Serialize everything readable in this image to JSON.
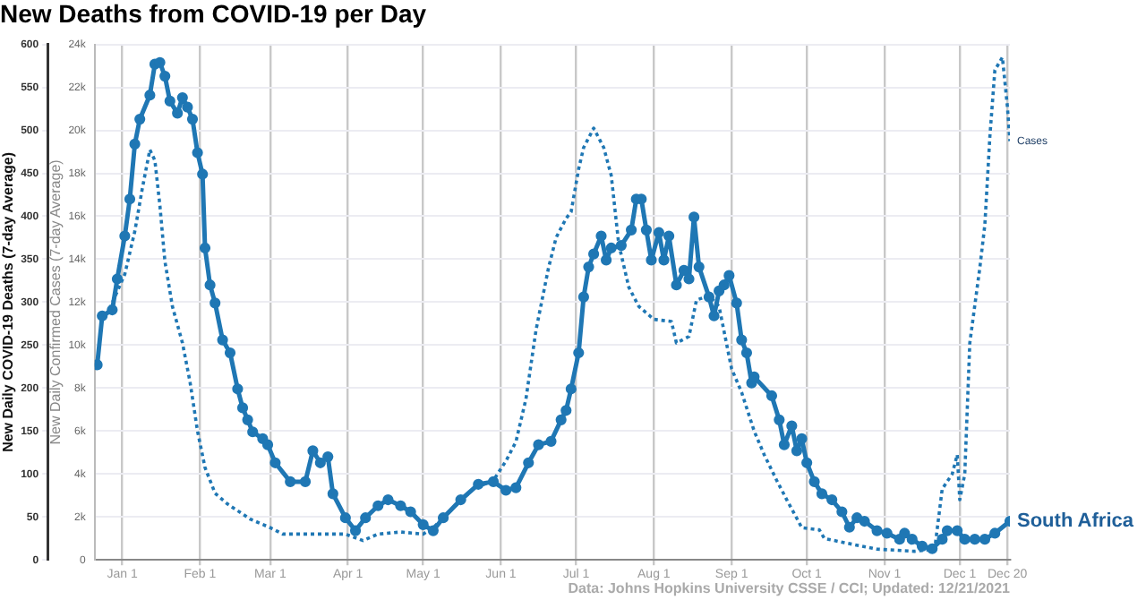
{
  "chart_data": {
    "type": "line",
    "title": "New Deaths from COVID-19 per Day",
    "ylabel": "New Daily COVID-19 Deaths (7-day Average)",
    "y2label": "New Daily Confirmed Cases (7-day Average)",
    "annotations": [
      "Data: Johns Hopkins University CSSE / CCI; Updated: 12/21/2021"
    ],
    "xlim": [
      "2020-12-21",
      "2021-12-21"
    ],
    "xticks": [
      {
        "value": "2021-01-01",
        "label": "Jan 1"
      },
      {
        "value": "2021-02-01",
        "label": "Feb 1"
      },
      {
        "value": "2021-03-01",
        "label": "Mar 1"
      },
      {
        "value": "2021-04-01",
        "label": "Apr 1"
      },
      {
        "value": "2021-05-01",
        "label": "May 1"
      },
      {
        "value": "2021-06-01",
        "label": "Jun 1"
      },
      {
        "value": "2021-07-01",
        "label": "Jul 1"
      },
      {
        "value": "2021-08-01",
        "label": "Aug 1"
      },
      {
        "value": "2021-09-01",
        "label": "Sep 1"
      },
      {
        "value": "2021-10-01",
        "label": "Oct 1"
      },
      {
        "value": "2021-11-01",
        "label": "Nov 1"
      },
      {
        "value": "2021-12-01",
        "label": "Dec 1"
      },
      {
        "value": "2021-12-20",
        "label": "Dec 20"
      }
    ],
    "ylim": [
      0,
      600
    ],
    "yticks": [
      0,
      50,
      100,
      150,
      200,
      250,
      300,
      350,
      400,
      450,
      500,
      550,
      600
    ],
    "y2lim": [
      0,
      24000
    ],
    "y2ticks": [
      0,
      {
        "value": 2000,
        "label": "2k"
      },
      {
        "value": 4000,
        "label": "4k"
      },
      {
        "value": 6000,
        "label": "6k"
      },
      {
        "value": 8000,
        "label": "8k"
      },
      {
        "value": 10000,
        "label": "10k"
      },
      {
        "value": 12000,
        "label": "12k"
      },
      {
        "value": 14000,
        "label": "14k"
      },
      {
        "value": 16000,
        "label": "16k"
      },
      {
        "value": 18000,
        "label": "18k"
      },
      {
        "value": 20000,
        "label": "20k"
      },
      {
        "value": 22000,
        "label": "22k"
      },
      {
        "value": 24000,
        "label": "24k"
      }
    ],
    "grid": true,
    "legend": false,
    "series": [
      {
        "name": "South Africa",
        "color": "#1f77b4",
        "marker": "circle",
        "line_style": "solid",
        "x": [
          "2020-12-22",
          "2020-12-24",
          "2020-12-28",
          "2020-12-30",
          "2021-01-02",
          "2021-01-04",
          "2021-01-06",
          "2021-01-08",
          "2021-01-12",
          "2021-01-14",
          "2021-01-16",
          "2021-01-18",
          "2021-01-20",
          "2021-01-23",
          "2021-01-25",
          "2021-01-27",
          "2021-01-29",
          "2021-01-31",
          "2021-02-02",
          "2021-02-03",
          "2021-02-05",
          "2021-02-07",
          "2021-02-10",
          "2021-02-13",
          "2021-02-16",
          "2021-02-18",
          "2021-02-20",
          "2021-02-22",
          "2021-02-26",
          "2021-02-28",
          "2021-03-03",
          "2021-03-09",
          "2021-03-15",
          "2021-03-18",
          "2021-03-21",
          "2021-03-24",
          "2021-03-26",
          "2021-03-31",
          "2021-04-04",
          "2021-04-08",
          "2021-04-13",
          "2021-04-17",
          "2021-04-22",
          "2021-04-26",
          "2021-05-01",
          "2021-05-05",
          "2021-05-09",
          "2021-05-16",
          "2021-05-23",
          "2021-05-29",
          "2021-06-03",
          "2021-06-07",
          "2021-06-12",
          "2021-06-16",
          "2021-06-21",
          "2021-06-25",
          "2021-06-27",
          "2021-06-29",
          "2021-07-02",
          "2021-07-04",
          "2021-07-06",
          "2021-07-08",
          "2021-07-11",
          "2021-07-13",
          "2021-07-15",
          "2021-07-19",
          "2021-07-23",
          "2021-07-25",
          "2021-07-27",
          "2021-07-29",
          "2021-07-31",
          "2021-08-03",
          "2021-08-05",
          "2021-08-07",
          "2021-08-10",
          "2021-08-13",
          "2021-08-15",
          "2021-08-17",
          "2021-08-19",
          "2021-08-23",
          "2021-08-25",
          "2021-08-27",
          "2021-08-29",
          "2021-08-31",
          "2021-09-03",
          "2021-09-05",
          "2021-09-07",
          "2021-09-09",
          "2021-09-10",
          "2021-09-17",
          "2021-09-20",
          "2021-09-22",
          "2021-09-25",
          "2021-09-27",
          "2021-09-29",
          "2021-10-01",
          "2021-10-04",
          "2021-10-07",
          "2021-10-11",
          "2021-10-15",
          "2021-10-18",
          "2021-10-21",
          "2021-10-24",
          "2021-10-29",
          "2021-11-02",
          "2021-11-07",
          "2021-11-09",
          "2021-11-12",
          "2021-11-16",
          "2021-11-20",
          "2021-11-24",
          "2021-11-26",
          "2021-11-30",
          "2021-12-03",
          "2021-12-07",
          "2021-12-11",
          "2021-12-15",
          "2021-12-21"
        ],
        "values": [
          227,
          284,
          291,
          327,
          377,
          420,
          484,
          513,
          541,
          577,
          579,
          563,
          534,
          520,
          538,
          527,
          513,
          474,
          449,
          363,
          320,
          299,
          256,
          241,
          199,
          177,
          163,
          149,
          141,
          134,
          113,
          91,
          91,
          127,
          113,
          120,
          77,
          49,
          34,
          49,
          63,
          70,
          63,
          56,
          41,
          34,
          49,
          70,
          88,
          91,
          81,
          84,
          113,
          134,
          138,
          163,
          174,
          199,
          241,
          306,
          341,
          356,
          377,
          349,
          363,
          366,
          384,
          420,
          420,
          384,
          349,
          381,
          349,
          377,
          320,
          337,
          327,
          399,
          341,
          306,
          284,
          313,
          320,
          331,
          299,
          256,
          241,
          206,
          213,
          191,
          163,
          134,
          156,
          127,
          141,
          113,
          91,
          77,
          70,
          56,
          38,
          49,
          45,
          34,
          31,
          24,
          31,
          24,
          16,
          13,
          24,
          34,
          34,
          24,
          24,
          24,
          31,
          45
        ]
      },
      {
        "name": "Cases",
        "color": "#1f77b4",
        "marker": "none",
        "line_style": "dotted",
        "axis": "y2",
        "x": [
          "2020-12-27",
          "2021-01-02",
          "2021-01-06",
          "2021-01-09",
          "2021-01-12",
          "2021-01-14",
          "2021-01-16",
          "2021-01-18",
          "2021-01-21",
          "2021-01-25",
          "2021-01-28",
          "2021-01-31",
          "2021-02-03",
          "2021-02-07",
          "2021-02-12",
          "2021-02-21",
          "2021-03-01",
          "2021-03-06",
          "2021-03-15",
          "2021-03-26",
          "2021-03-31",
          "2021-04-07",
          "2021-04-13",
          "2021-04-22",
          "2021-05-01",
          "2021-05-05",
          "2021-05-12",
          "2021-05-21",
          "2021-05-29",
          "2021-06-03",
          "2021-06-07",
          "2021-06-11",
          "2021-06-15",
          "2021-06-20",
          "2021-06-23",
          "2021-06-27",
          "2021-06-29",
          "2021-07-02",
          "2021-07-04",
          "2021-07-08",
          "2021-07-12",
          "2021-07-15",
          "2021-07-18",
          "2021-07-22",
          "2021-07-26",
          "2021-08-01",
          "2021-08-08",
          "2021-08-10",
          "2021-08-15",
          "2021-08-18",
          "2021-08-23",
          "2021-08-27",
          "2021-09-01",
          "2021-09-05",
          "2021-09-10",
          "2021-09-14",
          "2021-09-19",
          "2021-09-23",
          "2021-09-29",
          "2021-10-06",
          "2021-10-08",
          "2021-10-16",
          "2021-10-29",
          "2021-11-13",
          "2021-11-21",
          "2021-11-24",
          "2021-11-28",
          "2021-11-30",
          "2021-12-01",
          "2021-12-03",
          "2021-12-05",
          "2021-12-09",
          "2021-12-11",
          "2021-12-13",
          "2021-12-15",
          "2021-12-18",
          "2021-12-20",
          "2021-12-21"
        ],
        "values": [
          11700,
          13300,
          15300,
          17300,
          19100,
          18600,
          16500,
          13900,
          11800,
          10100,
          8300,
          6000,
          4300,
          3100,
          2600,
          1900,
          1500,
          1200,
          1200,
          1200,
          1200,
          900,
          1200,
          1300,
          1200,
          1500,
          2300,
          3300,
          3700,
          4600,
          5500,
          7500,
          10700,
          13600,
          15000,
          15900,
          16200,
          18200,
          19200,
          20100,
          19200,
          17900,
          14700,
          12700,
          11800,
          11200,
          11100,
          10100,
          10400,
          12100,
          12300,
          11800,
          8900,
          7800,
          6000,
          4900,
          3700,
          2800,
          1500,
          1400,
          1000,
          800,
          500,
          400,
          500,
          3300,
          4000,
          4900,
          2800,
          4000,
          10100,
          13600,
          15600,
          19700,
          22800,
          23400,
          21100,
          19500
        ]
      }
    ]
  }
}
